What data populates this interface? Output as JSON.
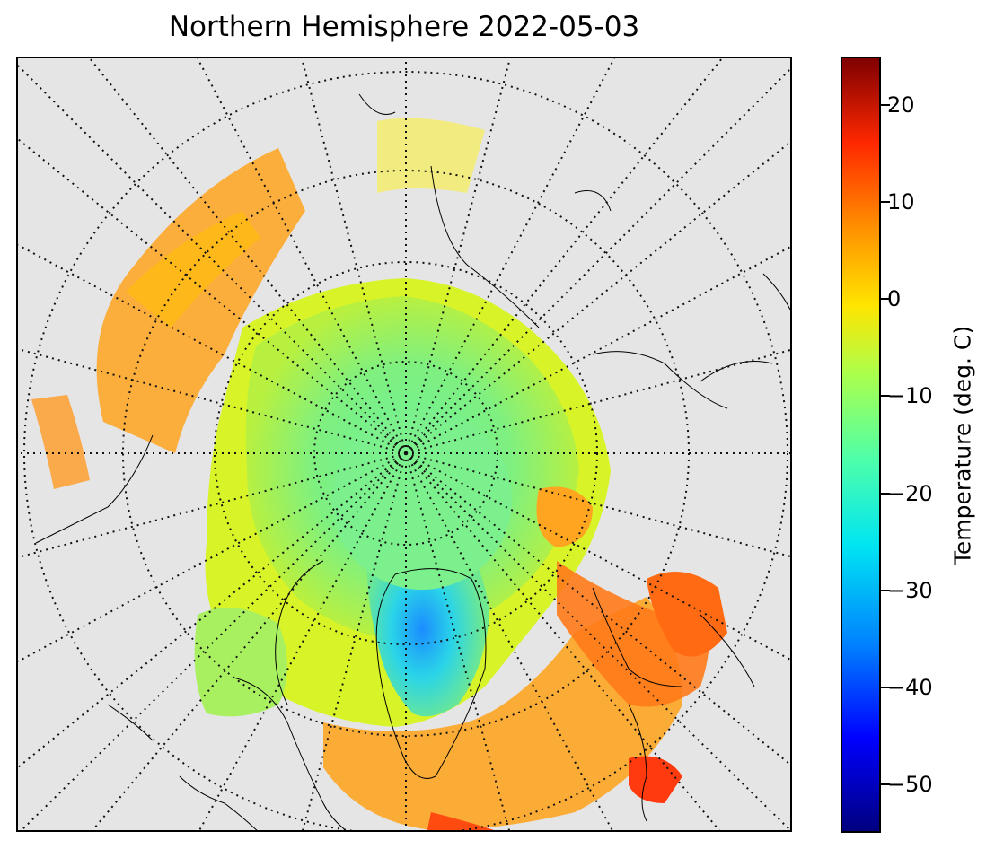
{
  "title": "Northern Hemisphere 2022-05-03",
  "map": {
    "projection": "north-polar-stereographic",
    "background_color": "#e5e5e5",
    "coastline_color": "#000000",
    "graticule_style": "dotted black"
  },
  "colorbar": {
    "label": "Temperature (deg. C)",
    "range": [
      -55,
      25
    ],
    "colormap": "jet",
    "ticks": [
      {
        "value": 20,
        "label": "20"
      },
      {
        "value": 10,
        "label": "10"
      },
      {
        "value": 0,
        "label": "0"
      },
      {
        "value": -10,
        "label": "−10"
      },
      {
        "value": -20,
        "label": "−20"
      },
      {
        "value": -30,
        "label": "−30"
      },
      {
        "value": -40,
        "label": "−40"
      },
      {
        "value": -50,
        "label": "−50"
      }
    ]
  }
}
